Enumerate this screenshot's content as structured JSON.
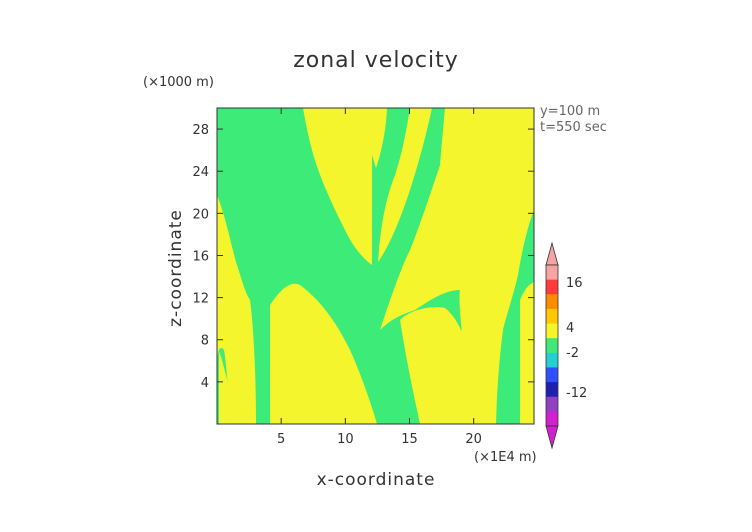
{
  "chart_data": {
    "type": "heatmap",
    "title": "zonal velocity",
    "xlabel": "x-coordinate",
    "ylabel": "z-coordinate",
    "x_unit": "(×1E4 m)",
    "y_unit": "(×1000 m)",
    "annotations": [
      "y=100 m",
      "t=550 sec"
    ],
    "xlim": [
      0,
      24.7
    ],
    "ylim": [
      0,
      30
    ],
    "x_ticks": [
      5,
      10,
      15,
      20
    ],
    "y_ticks": [
      4,
      8,
      12,
      16,
      20,
      24,
      28
    ],
    "grid": false,
    "colorbar": {
      "tick_labels": [
        "16",
        "4",
        "-2",
        "-12"
      ],
      "colors": [
        "#f5a3a3",
        "#ff3b3b",
        "#ff8c00",
        "#ffc800",
        "#f5f52a",
        "#40e87a",
        "#22d0d0",
        "#3050ff",
        "#2020b0",
        "#9040c0",
        "#d020d0"
      ]
    },
    "regions": {
      "background_level": "green",
      "yellow_level": "yellow",
      "green": "#3ceb78",
      "yellow": "#f5f52d"
    }
  }
}
